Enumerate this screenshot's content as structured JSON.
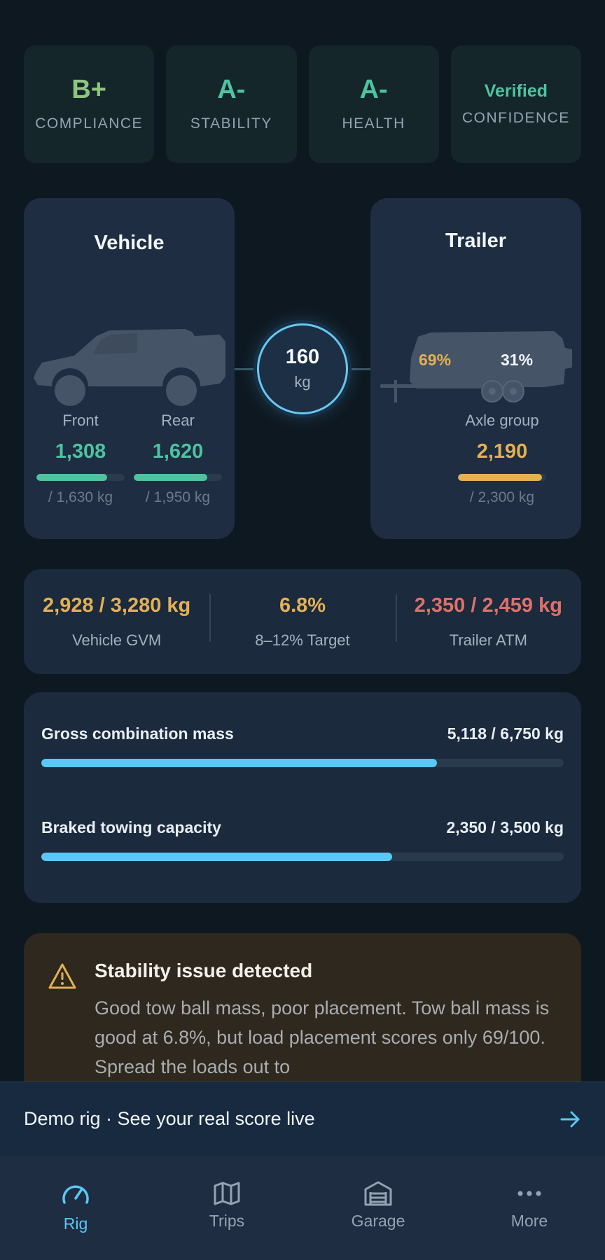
{
  "scores": [
    {
      "grade": "B+",
      "label": "COMPLIANCE",
      "color": "#8fc482"
    },
    {
      "grade": "A-",
      "label": "STABILITY",
      "color": "#4fc2a0"
    },
    {
      "grade": "A-",
      "label": "HEALTH",
      "color": "#4fc2a0"
    },
    {
      "grade": "Verified",
      "label": "CONFIDENCE",
      "color": "#4fc2a0"
    }
  ],
  "vehicle": {
    "title": "Vehicle",
    "front": {
      "name": "Front",
      "value": "1,308",
      "limit": "/ 1,630 kg",
      "fill": 0.8025
    },
    "rear": {
      "name": "Rear",
      "value": "1,620",
      "limit": "/ 1,950 kg",
      "fill": 0.8308
    }
  },
  "towball": {
    "value": "160",
    "unit": "kg"
  },
  "trailer": {
    "title": "Trailer",
    "front_split": "69%",
    "rear_split": "31%",
    "axle": {
      "name": "Axle group",
      "value": "2,190",
      "limit": "/ 2,300 kg",
      "fill": 0.9522
    }
  },
  "summary": [
    {
      "value": "2,928 / 3,280 kg",
      "label": "Vehicle GVM",
      "color": "#e4b052"
    },
    {
      "value": "6.8%",
      "label": "8–12% Target",
      "color": "#e4b052"
    },
    {
      "value": "2,350 / 2,459 kg",
      "label": "Trailer ATM",
      "color": "#e07068"
    }
  ],
  "capacity": [
    {
      "label": "Gross combination mass",
      "value": "5,118 / 6,750 kg",
      "fill": 0.758
    },
    {
      "label": "Braked towing capacity",
      "value": "2,350 / 3,500 kg",
      "fill": 0.671
    }
  ],
  "alert": {
    "title": "Stability issue detected",
    "body": "Good tow ball mass, poor placement. Tow ball mass is good at 6.8%, but load placement scores only 69/100. Spread the loads out to"
  },
  "demo_banner": {
    "text": "Demo rig · See your real score live",
    "icon": "arrow-right-icon"
  },
  "nav": [
    {
      "label": "Rig",
      "icon": "gauge-icon",
      "active": true
    },
    {
      "label": "Trips",
      "icon": "map-icon",
      "active": false
    },
    {
      "label": "Garage",
      "icon": "garage-icon",
      "active": false
    },
    {
      "label": "More",
      "icon": "more-icon",
      "active": false
    }
  ],
  "colors": {
    "green": "#4fc2a0",
    "amber": "#e4b052",
    "red": "#e07068",
    "accent": "#5ac8f4"
  }
}
